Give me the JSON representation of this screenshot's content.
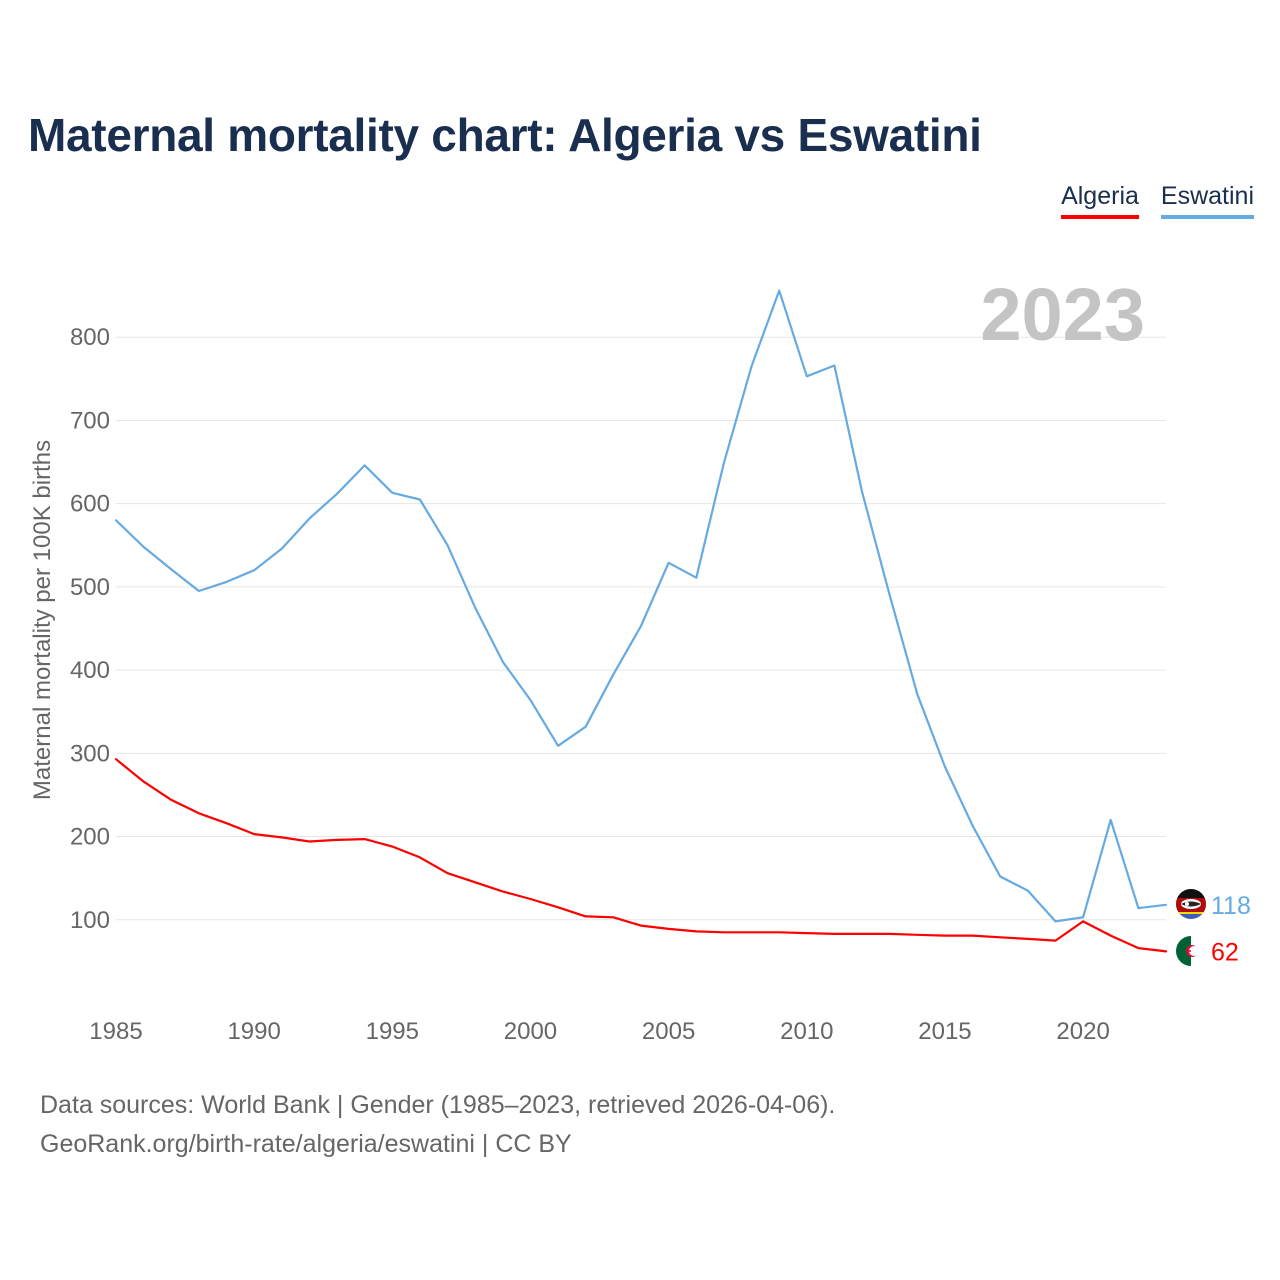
{
  "title": "Maternal mortality chart: Algeria vs Eswatini",
  "legend": {
    "algeria": "Algeria",
    "eswatini": "Eswatini"
  },
  "year_label": "2023",
  "footer": {
    "sources": "Data sources: World Bank | Gender (1985–2023, retrieved 2026-04-06).",
    "credit": "GeoRank.org/birth-rate/algeria/eswatini | CC BY"
  },
  "colors": {
    "algeria": "#ff0000",
    "eswatini": "#66aae2",
    "title": "#1a2e4f",
    "axis_text": "#666666",
    "grid": "#e6e6e6",
    "year": "#c4c4c4"
  },
  "chart_data": {
    "type": "line",
    "ylabel": "Maternal mortality per 100K births",
    "xlabel": "",
    "xlim": [
      1985,
      2023
    ],
    "ylim": [
      0,
      900
    ],
    "x_ticks": [
      1985,
      1990,
      1995,
      2000,
      2005,
      2010,
      2015,
      2020
    ],
    "y_ticks": [
      100,
      200,
      300,
      400,
      500,
      600,
      700,
      800
    ],
    "grid": true,
    "legend": "top-right",
    "x": [
      1985,
      1986,
      1987,
      1988,
      1989,
      1990,
      1991,
      1992,
      1993,
      1994,
      1995,
      1996,
      1997,
      1998,
      1999,
      2000,
      2001,
      2002,
      2003,
      2004,
      2005,
      2006,
      2007,
      2008,
      2009,
      2010,
      2011,
      2012,
      2013,
      2014,
      2015,
      2016,
      2017,
      2018,
      2019,
      2020,
      2021,
      2022,
      2023
    ],
    "series": [
      {
        "name": "Algeria",
        "color": "#ff0000",
        "values": [
          293,
          266,
          244,
          228,
          216,
          203,
          199,
          194,
          196,
          197,
          188,
          175,
          156,
          145,
          134,
          125,
          115,
          104,
          103,
          93,
          89,
          86,
          85,
          85,
          85,
          84,
          83,
          83,
          83,
          82,
          81,
          81,
          79,
          77,
          75,
          98,
          81,
          66,
          62
        ],
        "end_label": "62"
      },
      {
        "name": "Eswatini",
        "color": "#66aae2",
        "values": [
          580,
          548,
          521,
          495,
          506,
          520,
          546,
          582,
          612,
          646,
          613,
          605,
          550,
          475,
          410,
          364,
          309,
          332,
          395,
          453,
          529,
          511,
          649,
          765,
          856,
          753,
          766,
          614,
          490,
          371,
          284,
          213,
          152,
          135,
          98,
          103,
          220,
          114,
          118
        ],
        "end_label": "118"
      }
    ]
  }
}
